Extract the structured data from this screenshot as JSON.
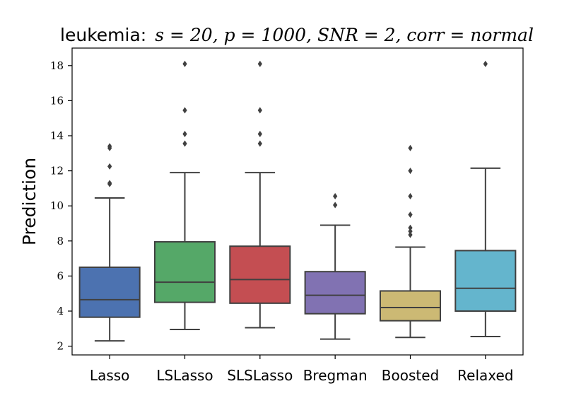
{
  "chart_data": {
    "type": "box",
    "title_prefix": "leukemia:",
    "title_math": "s = 20, p = 1000, SNR = 2, corr = normal",
    "xlabel": "",
    "ylabel": "Prediction",
    "ylim": [
      1.5,
      19.0
    ],
    "yticks": [
      2,
      4,
      6,
      8,
      10,
      12,
      14,
      16,
      18
    ],
    "grid": false,
    "categories": [
      "Lasso",
      "LSLasso",
      "SLSLasso",
      "Bregman",
      "Boosted",
      "Relaxed"
    ],
    "boxes": [
      {
        "name": "Lasso",
        "whisker_low": 2.3,
        "q1": 3.65,
        "median": 4.65,
        "q3": 6.5,
        "whisker_high": 10.45,
        "outliers": [
          11.25,
          11.3,
          12.25,
          13.3,
          13.4
        ],
        "color": "#4c72b0"
      },
      {
        "name": "LSLasso",
        "whisker_low": 2.95,
        "q1": 4.5,
        "median": 5.65,
        "q3": 7.95,
        "whisker_high": 11.9,
        "outliers": [
          13.55,
          14.1,
          15.45,
          18.1
        ],
        "color": "#55a868"
      },
      {
        "name": "SLSLasso",
        "whisker_low": 3.05,
        "q1": 4.45,
        "median": 5.8,
        "q3": 7.7,
        "whisker_high": 11.9,
        "outliers": [
          13.55,
          14.1,
          15.45,
          18.1
        ],
        "color": "#c44e52"
      },
      {
        "name": "Bregman",
        "whisker_low": 2.4,
        "q1": 3.85,
        "median": 4.9,
        "q3": 6.25,
        "whisker_high": 8.9,
        "outliers": [
          10.05,
          10.55
        ],
        "color": "#8172b2"
      },
      {
        "name": "Boosted",
        "whisker_low": 2.5,
        "q1": 3.45,
        "median": 4.2,
        "q3": 5.15,
        "whisker_high": 7.65,
        "outliers": [
          8.35,
          8.55,
          8.75,
          9.5,
          10.55,
          12.0,
          13.3
        ],
        "color": "#ccb974"
      },
      {
        "name": "Relaxed",
        "whisker_low": 2.55,
        "q1": 4.0,
        "median": 5.3,
        "q3": 7.45,
        "whisker_high": 12.15,
        "outliers": [
          18.1
        ],
        "color": "#64b5cd"
      }
    ],
    "line_color": "#404040"
  }
}
